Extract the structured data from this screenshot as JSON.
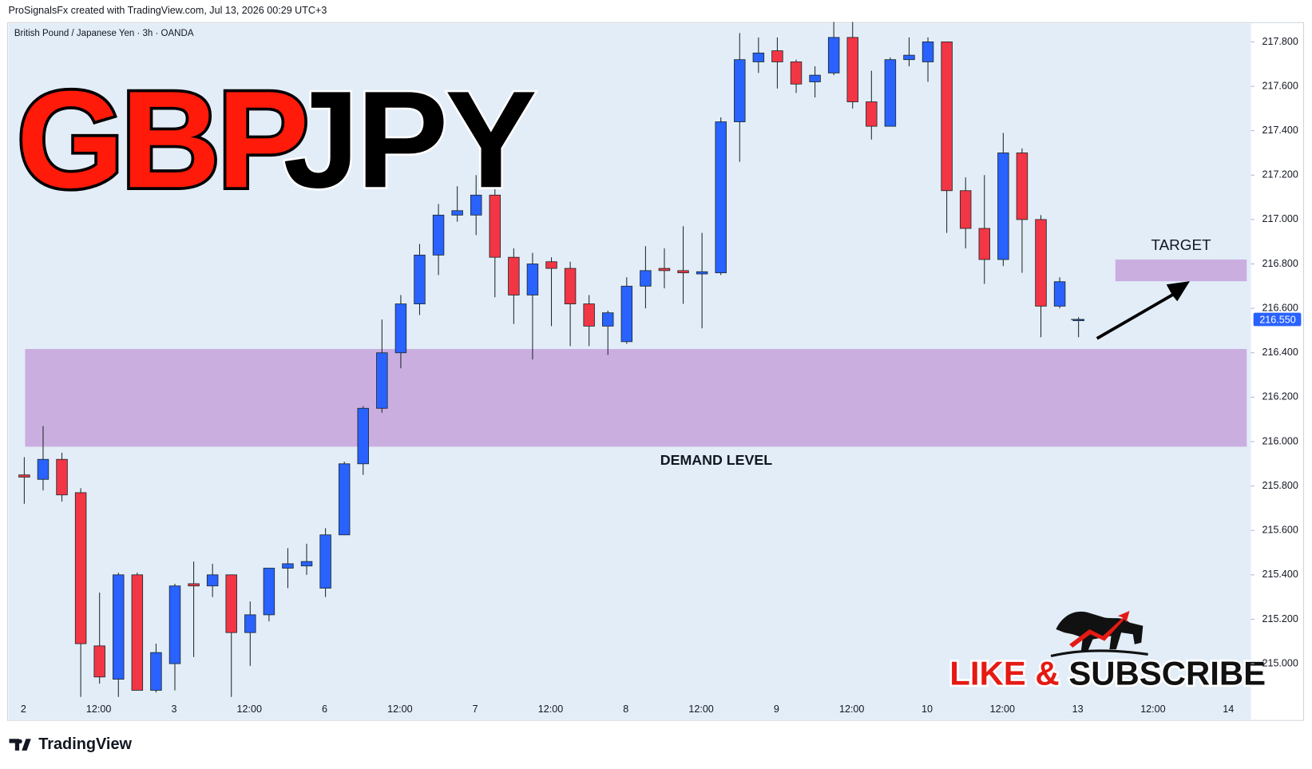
{
  "header": {
    "credit": "ProSignalsFx created with TradingView.com, Jul 13, 2026 00:29 UTC+3",
    "symbol": "British Pound / Japanese Yen · 3h · OANDA"
  },
  "overlay": {
    "base": "GBP",
    "quote": "JPY",
    "like": "LIKE &",
    "subscribe": "SUBSCRIBE"
  },
  "footer": {
    "brand": "TradingView"
  },
  "chart_data": {
    "type": "candlestick",
    "up_color": "#2962ff",
    "down_color": "#f23645",
    "wick_color": "#1e2a2a",
    "candles": {
      "open": [
        215.85,
        215.83,
        215.92,
        215.77,
        215.08,
        214.93,
        215.4,
        214.88,
        215.0,
        215.36,
        215.35,
        215.4,
        215.14,
        215.22,
        215.43,
        215.44,
        215.34,
        215.58,
        215.9,
        216.15,
        216.4,
        216.62,
        216.84,
        217.02,
        217.02,
        217.11,
        216.83,
        216.66,
        216.81,
        216.78,
        216.62,
        216.52,
        216.45,
        216.7,
        216.78,
        216.77,
        216.755,
        216.76,
        217.44,
        217.71,
        217.76,
        217.71,
        217.62,
        217.66,
        217.82,
        217.53,
        217.42,
        217.72,
        217.71,
        217.8,
        217.13,
        216.96,
        216.82,
        217.3,
        217.0,
        216.61,
        216.55
      ],
      "high": [
        215.93,
        216.07,
        215.95,
        215.79,
        215.32,
        215.41,
        215.41,
        215.09,
        215.36,
        215.46,
        215.45,
        215.4,
        215.28,
        215.43,
        215.52,
        215.54,
        215.61,
        215.91,
        216.16,
        216.55,
        216.66,
        216.89,
        217.07,
        217.15,
        217.2,
        217.22,
        216.87,
        216.85,
        216.83,
        216.81,
        216.66,
        216.59,
        216.74,
        216.88,
        216.87,
        216.97,
        216.94,
        217.46,
        217.84,
        217.82,
        217.82,
        217.72,
        217.69,
        217.89,
        217.89,
        217.67,
        217.73,
        217.82,
        217.82,
        217.8,
        217.19,
        217.2,
        217.39,
        217.32,
        217.02,
        216.74,
        216.56
      ],
      "low": [
        215.72,
        215.78,
        215.73,
        214.85,
        214.91,
        214.85,
        214.88,
        214.87,
        214.88,
        215.03,
        215.3,
        214.85,
        214.99,
        215.19,
        215.34,
        215.4,
        215.3,
        215.58,
        215.85,
        216.13,
        216.33,
        216.57,
        216.75,
        216.99,
        216.93,
        216.65,
        216.53,
        216.37,
        216.52,
        216.43,
        216.43,
        216.39,
        216.44,
        216.6,
        216.69,
        216.62,
        216.51,
        216.75,
        217.26,
        217.66,
        217.59,
        217.57,
        217.55,
        217.65,
        217.5,
        217.36,
        217.42,
        217.69,
        217.62,
        216.94,
        216.87,
        216.71,
        216.79,
        216.76,
        216.47,
        216.6,
        216.47
      ],
      "close": [
        215.84,
        215.92,
        215.76,
        215.09,
        214.94,
        215.4,
        214.88,
        215.05,
        215.35,
        215.35,
        215.4,
        215.14,
        215.22,
        215.43,
        215.45,
        215.46,
        215.58,
        215.9,
        216.15,
        216.4,
        216.62,
        216.84,
        217.02,
        217.04,
        217.11,
        216.83,
        216.66,
        216.8,
        216.78,
        216.62,
        216.52,
        216.58,
        216.7,
        216.77,
        216.77,
        216.76,
        216.765,
        217.44,
        217.72,
        217.75,
        217.71,
        217.61,
        217.65,
        217.82,
        217.53,
        217.42,
        217.72,
        217.74,
        217.8,
        217.13,
        216.96,
        216.82,
        217.3,
        217.0,
        216.61,
        216.72,
        216.55
      ]
    },
    "x_labels": [
      "2",
      "12:00",
      "3",
      "12:00",
      "6",
      "12:00",
      "7",
      "12:00",
      "8",
      "12:00",
      "9",
      "12:00",
      "10",
      "12:00",
      "13",
      "12:00",
      "14"
    ],
    "ylim": [
      214.748,
      217.883
    ],
    "yticks": [
      {
        "value": 215.0,
        "label": "215.000"
      },
      {
        "value": 215.2,
        "label": "215.200"
      },
      {
        "value": 215.4,
        "label": "215.400"
      },
      {
        "value": 215.6,
        "label": "215.600"
      },
      {
        "value": 215.8,
        "label": "215.800"
      },
      {
        "value": 216.0,
        "label": "216.000"
      },
      {
        "value": 216.2,
        "label": "216.200"
      },
      {
        "value": 216.4,
        "label": "216.400"
      },
      {
        "value": 216.6,
        "label": "216.600"
      },
      {
        "value": 216.8,
        "label": "216.800"
      },
      {
        "value": 217.0,
        "label": "217.000"
      },
      {
        "value": 217.2,
        "label": "217.200"
      },
      {
        "value": 217.4,
        "label": "217.400"
      },
      {
        "value": 217.6,
        "label": "217.600"
      },
      {
        "value": 217.8,
        "label": "217.800"
      }
    ],
    "grid": false,
    "last_price": {
      "value": 216.55,
      "label": "216.550",
      "color": "#2962ff"
    },
    "zones": [
      {
        "label": "DEMAND LEVEL",
        "top": 216.417,
        "bottom": 215.977,
        "color": "#cbaee0"
      },
      {
        "label": "TARGET",
        "top": 216.82,
        "bottom": 216.722,
        "color": "#cbaee0"
      }
    ]
  }
}
